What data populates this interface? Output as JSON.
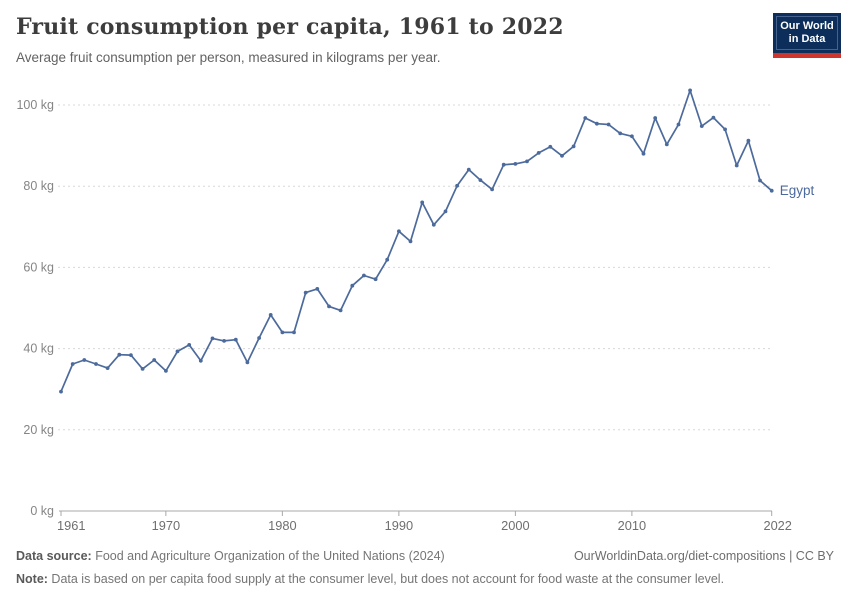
{
  "header": {
    "title": "Fruit consumption per capita, 1961 to 2022",
    "subtitle": "Average fruit consumption per person, measured in kilograms per year.",
    "logo": {
      "line1": "Our World",
      "line2": "in Data"
    }
  },
  "chart_data": {
    "type": "line",
    "title": "Fruit consumption per capita, 1961 to 2022",
    "subtitle": "Average fruit consumption per person, measured in kilograms per year.",
    "xlabel": "",
    "ylabel": "",
    "ylim": [
      0,
      100
    ],
    "grid": "horizontal-dashed",
    "legend_position": "end-of-line-label",
    "x_ticks": [
      1961,
      1970,
      1980,
      1990,
      2000,
      2010,
      2022
    ],
    "x_tick_labels": [
      "1961",
      "1970",
      "1980",
      "1990",
      "2000",
      "2010",
      "2022"
    ],
    "y_ticks": [
      0,
      20,
      40,
      60,
      80,
      100
    ],
    "y_tick_labels": [
      "0 kg",
      "20 kg",
      "40 kg",
      "60 kg",
      "80 kg",
      "100 kg"
    ],
    "x": [
      1961,
      1962,
      1963,
      1964,
      1965,
      1966,
      1967,
      1968,
      1969,
      1970,
      1971,
      1972,
      1973,
      1974,
      1975,
      1976,
      1977,
      1978,
      1979,
      1980,
      1981,
      1982,
      1983,
      1984,
      1985,
      1986,
      1987,
      1988,
      1989,
      1990,
      1991,
      1992,
      1993,
      1994,
      1995,
      1996,
      1997,
      1998,
      1999,
      2000,
      2001,
      2002,
      2003,
      2004,
      2005,
      2006,
      2007,
      2008,
      2009,
      2010,
      2011,
      2012,
      2013,
      2014,
      2015,
      2016,
      2017,
      2018,
      2019,
      2020,
      2021,
      2022
    ],
    "series": [
      {
        "name": "Egypt",
        "color": "#4C6A9C",
        "values": [
          29.4,
          36.2,
          37.2,
          36.2,
          35.2,
          38.5,
          38.4,
          35.0,
          37.2,
          34.5,
          39.3,
          40.9,
          37.0,
          42.5,
          41.9,
          42.2,
          36.6,
          42.6,
          48.3,
          44.0,
          44.0,
          53.8,
          54.7,
          50.4,
          49.4,
          55.5,
          58.0,
          57.1,
          61.9,
          68.9,
          66.4,
          76.0,
          70.5,
          73.8,
          80.1,
          84.1,
          81.5,
          79.2,
          85.3,
          85.5,
          86.1,
          88.2,
          89.7,
          87.5,
          89.8,
          96.8,
          95.4,
          95.2,
          93.0,
          92.3,
          88.0,
          96.8,
          90.3,
          95.2,
          103.6,
          94.8,
          96.9,
          94.0,
          85.1,
          91.2,
          81.4,
          78.9
        ]
      }
    ],
    "colors": {
      "line": "#4C6A9C",
      "gridline": "#d8d8d8",
      "axis": "#a8a8a8",
      "y_tick_label": "#858585",
      "x_tick_label": "#6f6f6f"
    }
  },
  "footer": {
    "data_source_label": "Data source:",
    "data_source": " Food and Agriculture Organization of the United Nations (2024)",
    "attribution": "OurWorldinData.org/diet-compositions | CC BY",
    "note_label": "Note:",
    "note": " Data is based on per capita food supply at the consumer level, but does not account for food waste at the consumer level."
  }
}
